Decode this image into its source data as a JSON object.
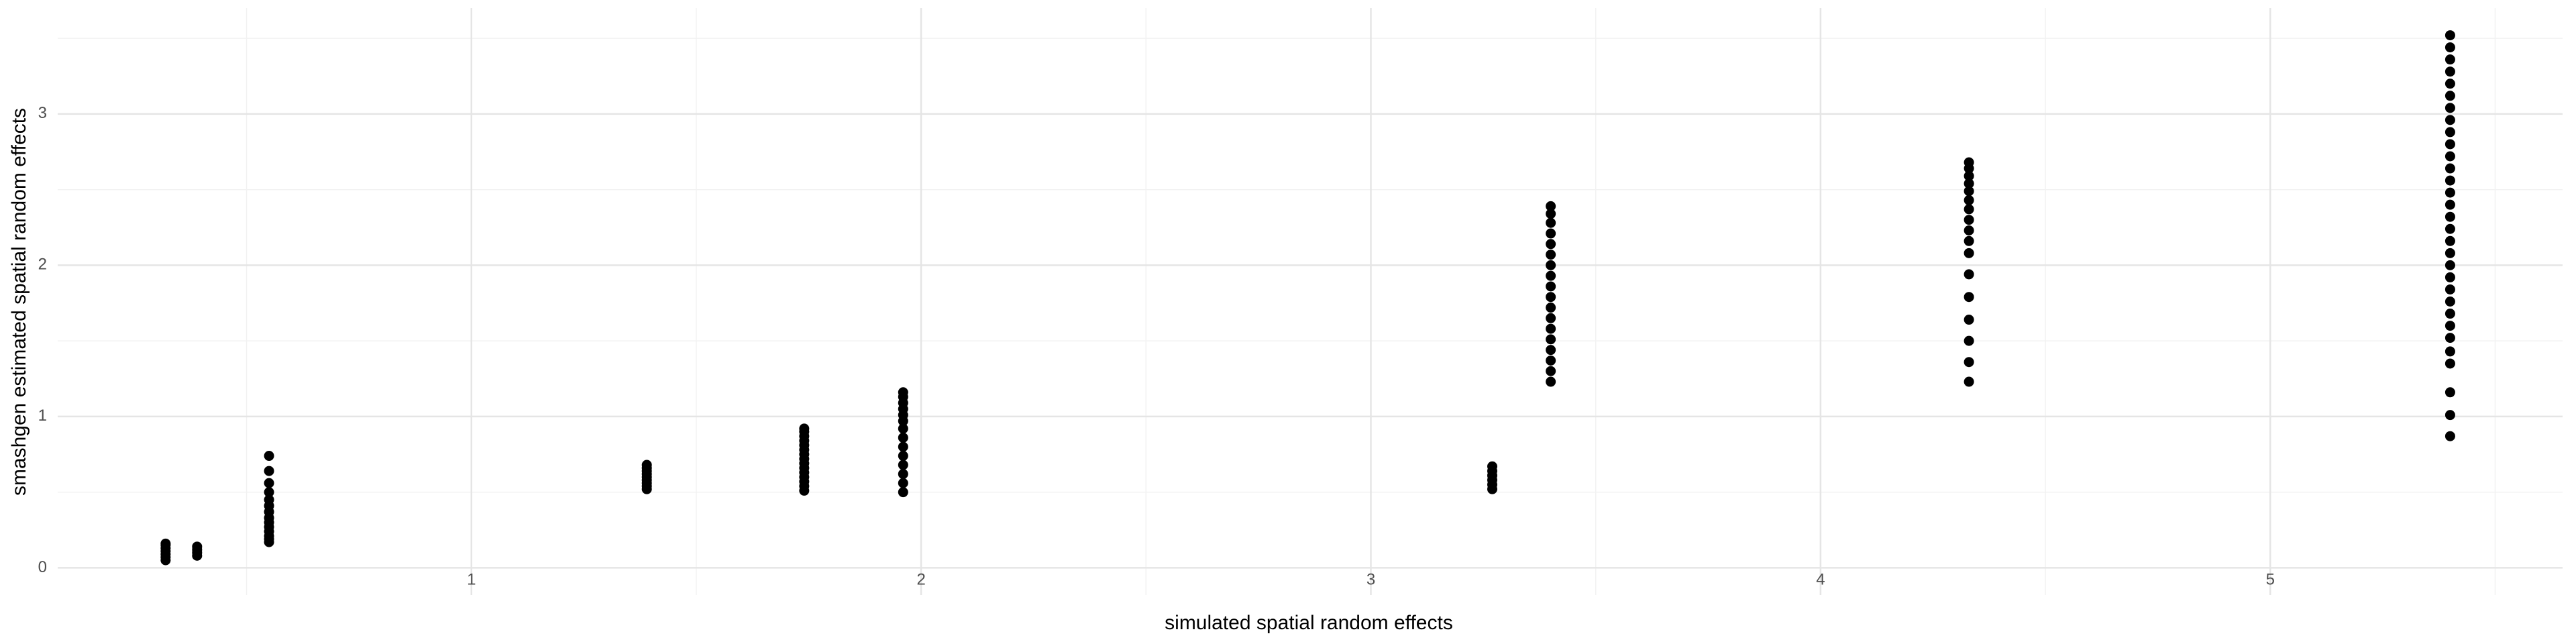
{
  "chart_data": {
    "type": "scatter",
    "x_label": "simulated spatial random effects",
    "y_label": "smashgen estimated spatial random effects",
    "color": "#000000",
    "grid": true,
    "xlim": [
      0.08,
      5.65
    ],
    "ylim": [
      -0.18,
      3.7
    ],
    "xticks": [
      1,
      2,
      3,
      4,
      5
    ],
    "yticks": [
      0,
      1,
      2,
      3
    ],
    "x": [
      0.32,
      0.32,
      0.32,
      0.32,
      0.32,
      0.32,
      0.32,
      0.39,
      0.39,
      0.39,
      0.39,
      0.55,
      0.55,
      0.55,
      0.55,
      0.55,
      0.55,
      0.55,
      0.55,
      0.55,
      0.55,
      0.55,
      0.55,
      0.55,
      0.55,
      1.39,
      1.39,
      1.39,
      1.39,
      1.39,
      1.39,
      1.39,
      1.39,
      1.39,
      1.74,
      1.74,
      1.74,
      1.74,
      1.74,
      1.74,
      1.74,
      1.74,
      1.74,
      1.74,
      1.74,
      1.74,
      1.74,
      1.74,
      1.74,
      1.96,
      1.96,
      1.96,
      1.96,
      1.96,
      1.96,
      1.96,
      1.96,
      1.96,
      1.96,
      1.96,
      1.96,
      1.96,
      1.96,
      3.27,
      3.27,
      3.27,
      3.27,
      3.27,
      3.27,
      3.4,
      3.4,
      3.4,
      3.4,
      3.4,
      3.4,
      3.4,
      3.4,
      3.4,
      3.4,
      3.4,
      3.4,
      3.4,
      3.4,
      3.4,
      3.4,
      3.4,
      3.4,
      4.33,
      4.33,
      4.33,
      4.33,
      4.33,
      4.33,
      4.33,
      4.33,
      4.33,
      4.33,
      4.33,
      4.33,
      4.33,
      4.33,
      4.33,
      4.33,
      4.33,
      5.4,
      5.4,
      5.4,
      5.4,
      5.4,
      5.4,
      5.4,
      5.4,
      5.4,
      5.4,
      5.4,
      5.4,
      5.4,
      5.4,
      5.4,
      5.4,
      5.4,
      5.4,
      5.4,
      5.4,
      5.4,
      5.4,
      5.4,
      5.4,
      5.4,
      5.4,
      5.4,
      5.4,
      5.4,
      5.4,
      5.4
    ],
    "values": [
      0.05,
      0.07,
      0.09,
      0.11,
      0.13,
      0.15,
      0.16,
      0.08,
      0.1,
      0.12,
      0.14,
      0.17,
      0.19,
      0.21,
      0.24,
      0.27,
      0.3,
      0.33,
      0.37,
      0.41,
      0.45,
      0.5,
      0.56,
      0.64,
      0.74,
      0.52,
      0.54,
      0.56,
      0.58,
      0.6,
      0.62,
      0.64,
      0.66,
      0.68,
      0.51,
      0.54,
      0.57,
      0.6,
      0.63,
      0.66,
      0.69,
      0.72,
      0.75,
      0.78,
      0.81,
      0.84,
      0.87,
      0.9,
      0.92,
      0.5,
      0.56,
      0.62,
      0.68,
      0.74,
      0.8,
      0.86,
      0.92,
      0.97,
      1.01,
      1.05,
      1.09,
      1.13,
      1.16,
      0.52,
      0.55,
      0.58,
      0.61,
      0.64,
      0.67,
      1.23,
      1.3,
      1.37,
      1.44,
      1.51,
      1.58,
      1.65,
      1.72,
      1.79,
      1.86,
      1.93,
      2.0,
      2.07,
      2.14,
      2.21,
      2.28,
      2.34,
      2.39,
      1.23,
      1.36,
      1.5,
      1.64,
      1.79,
      1.94,
      2.08,
      2.16,
      2.23,
      2.3,
      2.37,
      2.43,
      2.49,
      2.54,
      2.59,
      2.64,
      2.68,
      0.87,
      1.01,
      1.16,
      1.35,
      1.43,
      1.52,
      1.6,
      1.68,
      1.76,
      1.84,
      1.92,
      2.0,
      2.08,
      2.16,
      2.24,
      2.32,
      2.4,
      2.48,
      2.56,
      2.64,
      2.72,
      2.8,
      2.88,
      2.96,
      3.04,
      3.12,
      3.2,
      3.28,
      3.36,
      3.44,
      3.52
    ]
  }
}
